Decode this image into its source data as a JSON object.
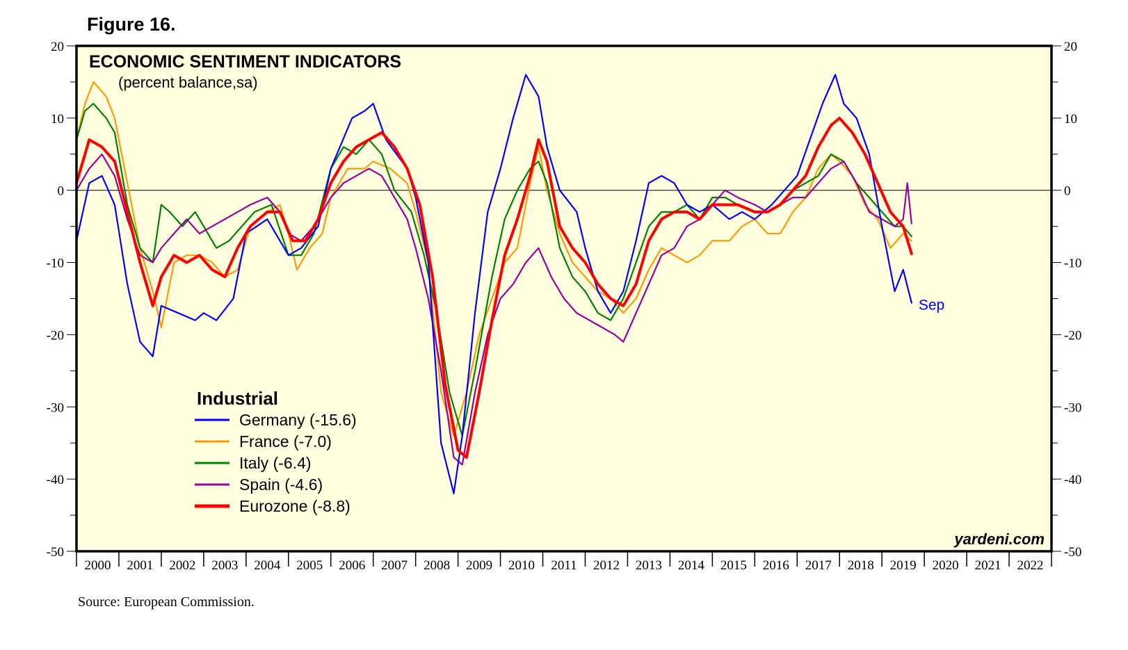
{
  "figure_label": "Figure 16.",
  "source": "Source: European Commission.",
  "watermark": "yardeni.com",
  "chart_data": {
    "type": "line",
    "title": "ECONOMIC SENTIMENT INDICATORS",
    "subtitle": "(percent balance,sa)",
    "legend_title": "Industrial",
    "end_label": "Sep",
    "ylim": [
      -50,
      20
    ],
    "yticks": [
      -50,
      -40,
      -30,
      -20,
      -10,
      0,
      10,
      20
    ],
    "ytick_labels": [
      "-50",
      "-40",
      "-30",
      "-20",
      "-10",
      "0",
      "10",
      "20"
    ],
    "xlim": [
      2000,
      2023
    ],
    "year_labels": [
      "2000",
      "2001",
      "2002",
      "2003",
      "2004",
      "2005",
      "2006",
      "2007",
      "2008",
      "2009",
      "2010",
      "2011",
      "2012",
      "2013",
      "2014",
      "2015",
      "2016",
      "2017",
      "2018",
      "2019",
      "2020",
      "2021",
      "2022"
    ],
    "background": "#ffffe0",
    "series": [
      {
        "name": "Germany",
        "legend": "Germany (-15.6)",
        "color": "#0000ff",
        "x": [
          2000.0,
          2000.3,
          2000.6,
          2000.9,
          2001.2,
          2001.5,
          2001.8,
          2002.0,
          2002.4,
          2002.8,
          2003.0,
          2003.3,
          2003.7,
          2004.0,
          2004.5,
          2005.0,
          2005.3,
          2005.7,
          2006.0,
          2006.5,
          2006.8,
          2007.0,
          2007.3,
          2007.8,
          2008.0,
          2008.3,
          2008.6,
          2008.9,
          2009.1,
          2009.4,
          2009.7,
          2010.0,
          2010.3,
          2010.6,
          2010.9,
          2011.1,
          2011.4,
          2011.8,
          2012.0,
          2012.3,
          2012.6,
          2012.9,
          2013.2,
          2013.5,
          2013.8,
          2014.1,
          2014.4,
          2014.7,
          2015.0,
          2015.4,
          2015.7,
          2016.0,
          2016.4,
          2016.7,
          2017.0,
          2017.3,
          2017.6,
          2017.9,
          2018.1,
          2018.4,
          2018.7,
          2019.0,
          2019.3,
          2019.5,
          2019.7
        ],
        "y": [
          -7,
          1,
          2,
          -2,
          -13,
          -21,
          -23,
          -16,
          -17,
          -18,
          -17,
          -18,
          -15,
          -6,
          -4,
          -9,
          -8,
          -5,
          3,
          10,
          11,
          12,
          7,
          3,
          -1,
          -10,
          -35,
          -42,
          -34,
          -17,
          -3,
          3,
          10,
          16,
          13,
          6,
          0,
          -3,
          -8,
          -14,
          -17,
          -14,
          -7,
          1,
          2,
          1,
          -2,
          -3,
          -2,
          -4,
          -3,
          -4,
          -2,
          0,
          2,
          7,
          12,
          16,
          12,
          10,
          5,
          -5,
          -14,
          -11,
          -15.6
        ]
      },
      {
        "name": "France",
        "legend": "France (-7.0)",
        "color": "#ff9900",
        "x": [
          2000.0,
          2000.2,
          2000.4,
          2000.7,
          2000.9,
          2001.2,
          2001.5,
          2001.8,
          2002.0,
          2002.3,
          2002.6,
          2002.9,
          2003.2,
          2003.5,
          2003.8,
          2004.1,
          2004.5,
          2004.8,
          2005.0,
          2005.2,
          2005.5,
          2005.8,
          2006.0,
          2006.4,
          2006.8,
          2007.0,
          2007.4,
          2007.8,
          2008.0,
          2008.3,
          2008.6,
          2008.9,
          2009.2,
          2009.5,
          2009.8,
          2010.1,
          2010.4,
          2010.7,
          2010.9,
          2011.1,
          2011.4,
          2011.7,
          2012.0,
          2012.3,
          2012.6,
          2012.9,
          2013.2,
          2013.5,
          2013.8,
          2014.1,
          2014.4,
          2014.7,
          2015.0,
          2015.4,
          2015.7,
          2016.0,
          2016.3,
          2016.6,
          2016.9,
          2017.2,
          2017.5,
          2017.8,
          2018.0,
          2018.3,
          2018.6,
          2018.9,
          2019.2,
          2019.5,
          2019.7
        ],
        "y": [
          7,
          12,
          15,
          13,
          10,
          1,
          -8,
          -14,
          -19,
          -10,
          -9,
          -9,
          -10,
          -12,
          -11,
          -5,
          -3,
          -2,
          -6,
          -11,
          -8,
          -6,
          -1,
          3,
          3,
          4,
          3,
          1,
          -3,
          -10,
          -28,
          -34,
          -28,
          -20,
          -15,
          -10,
          -8,
          1,
          6,
          0,
          -6,
          -10,
          -12,
          -14,
          -15,
          -17,
          -15,
          -11,
          -8,
          -9,
          -10,
          -9,
          -7,
          -7,
          -5,
          -4,
          -6,
          -6,
          -3,
          -1,
          3,
          5,
          4,
          2,
          -2,
          -4,
          -8,
          -6,
          -7.0
        ]
      },
      {
        "name": "Italy",
        "legend": "Italy (-6.4)",
        "color": "#008000",
        "x": [
          2000.0,
          2000.2,
          2000.4,
          2000.7,
          2000.9,
          2001.2,
          2001.5,
          2001.8,
          2002.0,
          2002.2,
          2002.5,
          2002.8,
          2003.0,
          2003.3,
          2003.6,
          2003.9,
          2004.2,
          2004.6,
          2005.0,
          2005.3,
          2005.6,
          2006.0,
          2006.3,
          2006.6,
          2006.9,
          2007.2,
          2007.5,
          2007.9,
          2008.2,
          2008.5,
          2008.8,
          2009.1,
          2009.4,
          2009.8,
          2010.1,
          2010.4,
          2010.7,
          2010.9,
          2011.1,
          2011.4,
          2011.7,
          2012.0,
          2012.3,
          2012.6,
          2012.9,
          2013.2,
          2013.5,
          2013.8,
          2014.1,
          2014.4,
          2014.7,
          2015.0,
          2015.3,
          2015.6,
          2016.0,
          2016.3,
          2016.6,
          2016.9,
          2017.2,
          2017.5,
          2017.8,
          2018.1,
          2018.4,
          2018.7,
          2019.0,
          2019.3,
          2019.5,
          2019.7
        ],
        "y": [
          7,
          11,
          12,
          10,
          8,
          -2,
          -8,
          -10,
          -2,
          -3,
          -5,
          -3,
          -5,
          -8,
          -7,
          -5,
          -3,
          -2,
          -9,
          -9,
          -6,
          3,
          6,
          5,
          7,
          5,
          0,
          -3,
          -9,
          -17,
          -28,
          -34,
          -25,
          -12,
          -4,
          0,
          3,
          4,
          1,
          -8,
          -12,
          -14,
          -17,
          -18,
          -15,
          -10,
          -5,
          -3,
          -3,
          -2,
          -4,
          -1,
          -1,
          -2,
          -3,
          -3,
          -2,
          0,
          1,
          2,
          5,
          4,
          1,
          -1,
          -3,
          -5,
          -5,
          -6.4
        ]
      },
      {
        "name": "Spain",
        "legend": "Spain (-4.6)",
        "color": "#990099",
        "x": [
          2000.0,
          2000.3,
          2000.6,
          2000.9,
          2001.2,
          2001.5,
          2001.8,
          2002.0,
          2002.3,
          2002.6,
          2002.9,
          2003.2,
          2003.5,
          2003.8,
          2004.1,
          2004.5,
          2004.8,
          2005.0,
          2005.3,
          2005.6,
          2006.0,
          2006.3,
          2006.6,
          2006.9,
          2007.2,
          2007.5,
          2007.8,
          2008.0,
          2008.3,
          2008.6,
          2008.9,
          2009.1,
          2009.4,
          2009.7,
          2010.0,
          2010.3,
          2010.6,
          2010.9,
          2011.2,
          2011.5,
          2011.8,
          2012.1,
          2012.4,
          2012.7,
          2012.9,
          2013.2,
          2013.5,
          2013.8,
          2014.1,
          2014.4,
          2014.7,
          2015.0,
          2015.3,
          2015.6,
          2016.0,
          2016.3,
          2016.6,
          2016.9,
          2017.2,
          2017.5,
          2017.8,
          2018.1,
          2018.4,
          2018.7,
          2019.0,
          2019.3,
          2019.5,
          2019.6,
          2019.7
        ],
        "y": [
          0,
          3,
          5,
          2,
          -4,
          -9,
          -10,
          -8,
          -6,
          -4,
          -6,
          -5,
          -4,
          -3,
          -2,
          -1,
          -3,
          -6,
          -7,
          -5,
          -1,
          1,
          2,
          3,
          2,
          -1,
          -4,
          -8,
          -15,
          -25,
          -37,
          -38,
          -28,
          -20,
          -15,
          -13,
          -10,
          -8,
          -12,
          -15,
          -17,
          -18,
          -19,
          -20,
          -21,
          -17,
          -13,
          -9,
          -8,
          -5,
          -4,
          -2,
          0,
          -1,
          -2,
          -3,
          -2,
          -1,
          -1,
          1,
          3,
          4,
          1,
          -3,
          -4,
          -5,
          -4,
          1,
          -4.6
        ]
      },
      {
        "name": "Eurozone",
        "legend": "Eurozone (-8.8)",
        "color": "#ff0000",
        "x": [
          2000.0,
          2000.3,
          2000.6,
          2000.9,
          2001.2,
          2001.5,
          2001.8,
          2002.0,
          2002.3,
          2002.6,
          2002.9,
          2003.2,
          2003.5,
          2003.8,
          2004.1,
          2004.5,
          2004.8,
          2005.1,
          2005.4,
          2005.7,
          2006.0,
          2006.3,
          2006.6,
          2006.9,
          2007.2,
          2007.5,
          2007.8,
          2008.1,
          2008.4,
          2008.7,
          2009.0,
          2009.2,
          2009.5,
          2009.8,
          2010.1,
          2010.4,
          2010.7,
          2010.9,
          2011.1,
          2011.4,
          2011.7,
          2012.0,
          2012.3,
          2012.6,
          2012.9,
          2013.2,
          2013.5,
          2013.8,
          2014.1,
          2014.4,
          2014.7,
          2015.0,
          2015.3,
          2015.6,
          2016.0,
          2016.3,
          2016.6,
          2016.9,
          2017.2,
          2017.5,
          2017.8,
          2018.0,
          2018.3,
          2018.6,
          2018.9,
          2019.2,
          2019.5,
          2019.7
        ],
        "y": [
          1,
          7,
          6,
          4,
          -3,
          -10,
          -16,
          -12,
          -9,
          -10,
          -9,
          -11,
          -12,
          -8,
          -5,
          -3,
          -3,
          -7,
          -7,
          -4,
          1,
          4,
          6,
          7,
          8,
          6,
          3,
          -2,
          -12,
          -27,
          -36,
          -37,
          -28,
          -18,
          -9,
          -4,
          2,
          7,
          4,
          -5,
          -8,
          -10,
          -13,
          -15,
          -16,
          -13,
          -7,
          -4,
          -3,
          -3,
          -4,
          -2,
          -2,
          -2,
          -3,
          -3,
          -2,
          0,
          2,
          6,
          9,
          10,
          8,
          5,
          1,
          -3,
          -5,
          -8.8
        ]
      }
    ]
  }
}
